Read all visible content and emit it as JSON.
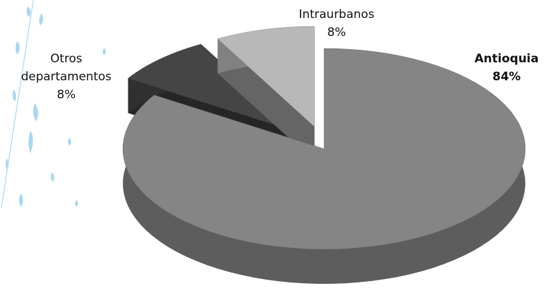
{
  "chart_data": {
    "type": "pie",
    "categories": [
      "Antioquia",
      "Otros departamentos",
      "Intraurbanos"
    ],
    "values": [
      84,
      8,
      8
    ],
    "value_labels": [
      "84%",
      "8%",
      "8%"
    ],
    "colors": [
      "#858585",
      "#454545",
      "#b8b8b8"
    ]
  }
}
